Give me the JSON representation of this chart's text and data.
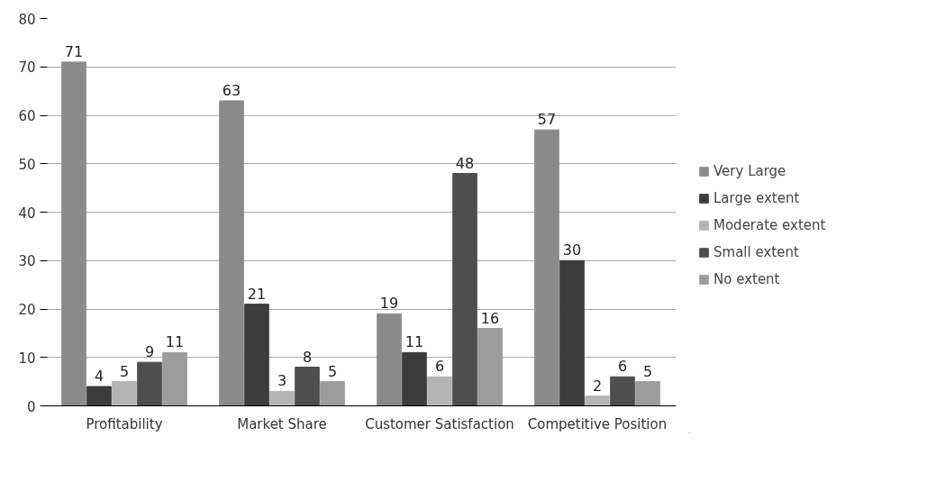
{
  "chart_data": {
    "type": "bar",
    "categories": [
      "Profitability",
      "Market Share",
      "Customer Satisfaction",
      "Competitive Position"
    ],
    "series": [
      {
        "name": "Very Large",
        "color": "#8a8a8a",
        "values": [
          71,
          63,
          19,
          57
        ]
      },
      {
        "name": "Large extent",
        "color": "#3c3c3c",
        "values": [
          4,
          21,
          11,
          30
        ]
      },
      {
        "name": "Moderate extent",
        "color": "#b4b4b4",
        "values": [
          5,
          3,
          6,
          2
        ]
      },
      {
        "name": "Small extent",
        "color": "#4e4e4e",
        "values": [
          9,
          8,
          48,
          6
        ]
      },
      {
        "name": "No extent",
        "color": "#9c9c9c",
        "values": [
          11,
          5,
          16,
          5
        ]
      }
    ],
    "ylim": [
      0,
      80
    ],
    "yticks": [
      0,
      10,
      20,
      30,
      40,
      50,
      60,
      70,
      80
    ],
    "grid": "y",
    "legend": "right",
    "data_labels": true
  }
}
